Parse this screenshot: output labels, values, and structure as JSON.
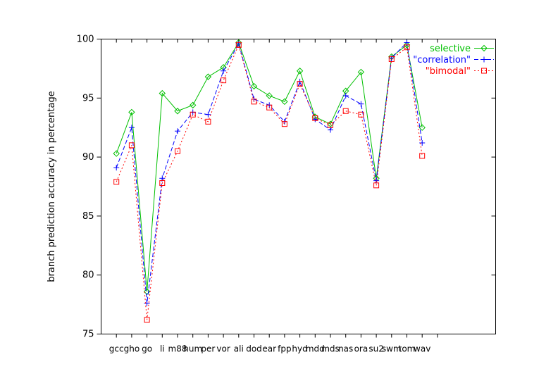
{
  "figure": {
    "background": "#ffffff",
    "border_color": "#000000",
    "text_color": "#000000"
  },
  "chart_data": {
    "type": "line",
    "title": "",
    "xlabel": "",
    "ylabel": "branch prediction accuracy in percentage",
    "ylim": [
      75,
      100
    ],
    "yticks": [
      75,
      80,
      85,
      90,
      95,
      100
    ],
    "grid": false,
    "legend_position": "top-right-inside",
    "legend": [
      {
        "label": "selective",
        "color": "#00c000",
        "marker": "diamond-open",
        "line": "solid"
      },
      {
        "label": "\"correlation\"",
        "color": "#0000ff",
        "marker": "plus",
        "line": "dashed"
      },
      {
        "label": "\"bimodal\"",
        "color": "#ff0000",
        "marker": "square-open",
        "line": "dotted"
      }
    ],
    "categories": [
      "gcc",
      "gho",
      "go",
      "li",
      "m88",
      "hum",
      "per",
      "vor",
      "ali",
      "dod",
      "ear",
      "fpp",
      "hyd",
      "mdd",
      "mds",
      "nas",
      "ora",
      "su2",
      "swm",
      "tom",
      "wav"
    ],
    "series": [
      {
        "name": "selective",
        "display": "selective",
        "color": "#00c000",
        "marker": "diamond-open",
        "line": "solid",
        "values": [
          90.3,
          93.8,
          78.6,
          95.4,
          93.9,
          94.4,
          96.8,
          97.6,
          99.7,
          96.0,
          95.2,
          94.7,
          97.3,
          93.4,
          92.8,
          95.6,
          97.2,
          88.2,
          98.5,
          99.5,
          92.5
        ]
      },
      {
        "name": "correlation",
        "display": "\"correlation\"",
        "color": "#0000ff",
        "marker": "plus",
        "line": "dashed",
        "values": [
          89.1,
          92.5,
          77.6,
          88.2,
          92.2,
          93.8,
          93.6,
          97.3,
          99.6,
          94.9,
          94.4,
          93.0,
          96.4,
          93.2,
          92.3,
          95.2,
          94.5,
          88.0,
          98.4,
          99.7,
          91.2
        ]
      },
      {
        "name": "bimodal",
        "display": "\"bimodal\"",
        "color": "#ff0000",
        "marker": "square-open",
        "line": "dotted",
        "values": [
          87.9,
          91.0,
          76.2,
          87.8,
          90.5,
          93.6,
          93.0,
          96.5,
          99.5,
          94.7,
          94.2,
          92.8,
          96.2,
          93.3,
          92.7,
          93.9,
          93.6,
          87.6,
          98.3,
          99.3,
          90.1
        ]
      }
    ]
  }
}
